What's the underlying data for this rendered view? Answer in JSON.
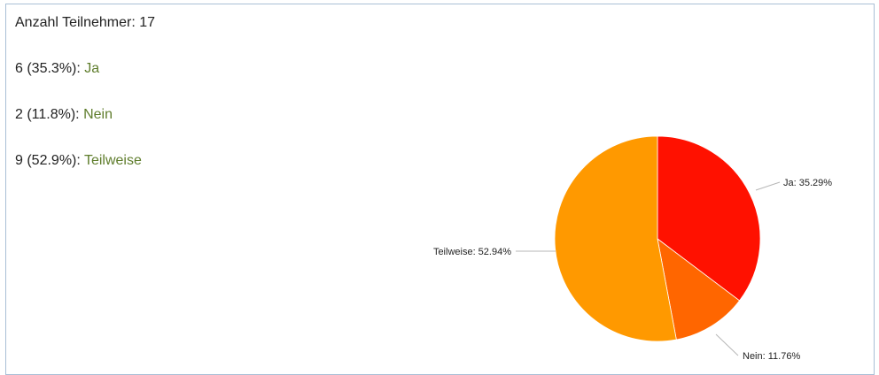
{
  "summary": {
    "participants": "Anzahl Teilnehmer: 17",
    "rows": [
      {
        "count": "6 (35.3%):",
        "answer": "Ja"
      },
      {
        "count": "2 (11.8%):",
        "answer": "Nein"
      },
      {
        "count": "9 (52.9%):",
        "answer": "Teilweise"
      }
    ]
  },
  "chart_data": {
    "type": "pie",
    "categories": [
      "Ja",
      "Nein",
      "Teilweise"
    ],
    "values": [
      35.29,
      11.76,
      52.94
    ],
    "labels": [
      "Ja: 35.29%",
      "Nein: 11.76%",
      "Teilweise: 52.94%"
    ],
    "colors": [
      "#ff1100",
      "#ff6600",
      "#ff9900"
    ],
    "title": "",
    "legend": "none"
  }
}
